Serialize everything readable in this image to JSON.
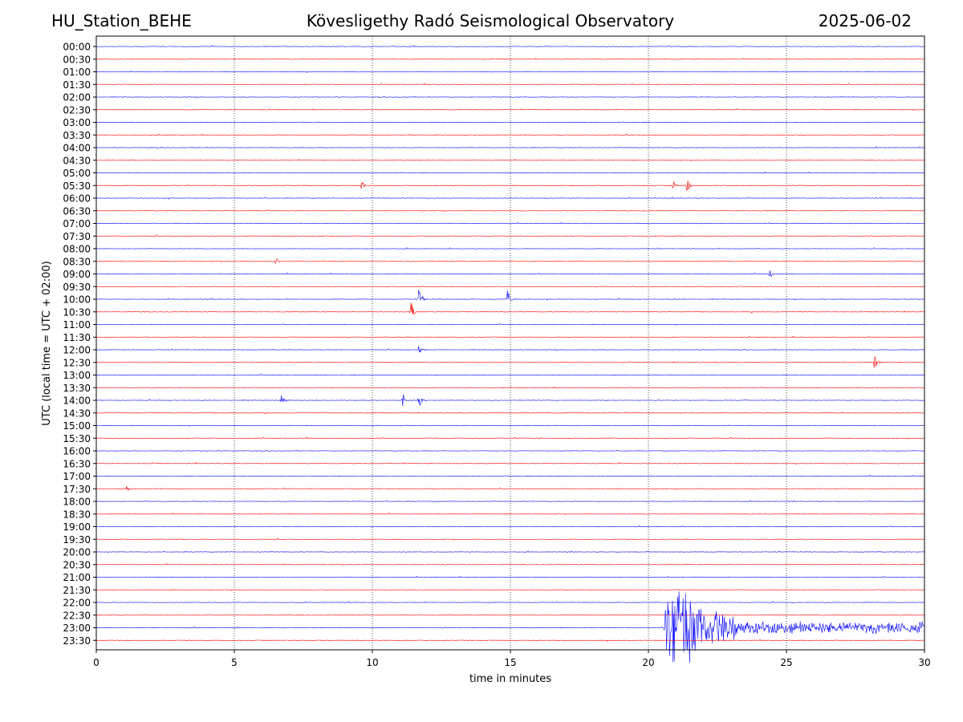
{
  "header": {
    "station": "HU_Station_BEHE",
    "observatory": "Kövesligethy Radó Seismological Observatory",
    "date": "2025-06-02"
  },
  "chart_data": {
    "type": "line",
    "title": "Kövesligethy Radó Seismological Observatory",
    "xlabel": "time in minutes",
    "ylabel": "UTC (local time = UTC + 02:00)",
    "xlim": [
      0,
      30
    ],
    "xticks": [
      0,
      5,
      10,
      15,
      20,
      25,
      30
    ],
    "grid_x": true,
    "rows": [
      "00:00",
      "00:30",
      "01:00",
      "01:30",
      "02:00",
      "02:30",
      "03:00",
      "03:30",
      "04:00",
      "04:30",
      "05:00",
      "05:30",
      "06:00",
      "06:30",
      "07:00",
      "07:30",
      "08:00",
      "08:30",
      "09:00",
      "09:30",
      "10:00",
      "10:30",
      "11:00",
      "11:30",
      "12:00",
      "12:30",
      "13:00",
      "13:30",
      "14:00",
      "14:30",
      "15:00",
      "15:30",
      "16:00",
      "16:30",
      "17:00",
      "17:30",
      "18:00",
      "18:30",
      "19:00",
      "19:30",
      "20:00",
      "20:30",
      "21:00",
      "21:30",
      "22:00",
      "22:30",
      "23:00",
      "23:30"
    ],
    "colors": {
      "even_rows": "#0000ff",
      "odd_rows": "#ff0000"
    },
    "events": [
      {
        "row": "05:30",
        "minute": 9.6,
        "amplitude": 0.3
      },
      {
        "row": "05:30",
        "minute": 20.9,
        "amplitude": 0.3
      },
      {
        "row": "05:30",
        "minute": 21.4,
        "amplitude": 0.5
      },
      {
        "row": "08:30",
        "minute": 6.5,
        "amplitude": 0.3
      },
      {
        "row": "09:00",
        "minute": 24.4,
        "amplitude": 0.25
      },
      {
        "row": "10:00",
        "minute": 11.7,
        "amplitude": 0.8
      },
      {
        "row": "10:00",
        "minute": 14.9,
        "amplitude": 0.6
      },
      {
        "row": "10:30",
        "minute": 11.4,
        "amplitude": 0.8
      },
      {
        "row": "12:00",
        "minute": 11.7,
        "amplitude": 0.6
      },
      {
        "row": "12:30",
        "minute": 28.2,
        "amplitude": 0.5
      },
      {
        "row": "14:00",
        "minute": 6.7,
        "amplitude": 0.5
      },
      {
        "row": "14:00",
        "minute": 11.1,
        "amplitude": 0.4
      },
      {
        "row": "14:00",
        "minute": 11.7,
        "amplitude": 0.7
      },
      {
        "row": "17:30",
        "minute": 1.1,
        "amplitude": 0.25
      }
    ],
    "earthquake": {
      "row": "23:00",
      "start_minute": 20.55,
      "peak_amplitude": 3.3,
      "coda_end_minute": 30
    }
  }
}
